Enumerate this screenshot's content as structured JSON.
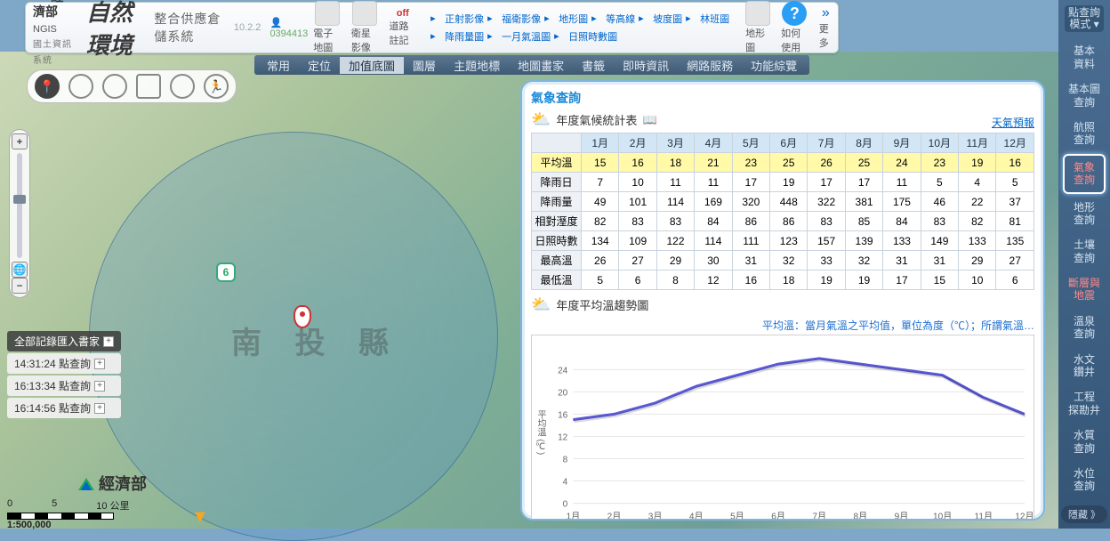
{
  "header": {
    "ministry": "經濟部",
    "ngis": "NGIS",
    "ngis_sub": "國土資訊系統",
    "title": "自然環境",
    "title_tail": "整合供應倉儲系統",
    "version": "10.2.2",
    "visitor": "0394413",
    "btn_cols": {
      "emap": "電子地圖",
      "sat": "衛星影像",
      "off": "off",
      "off_label": "道路註記",
      "terrain": "地形圖",
      "howto": "如何使用",
      "more": "更多"
    },
    "tool_links": [
      "正射影像",
      "福衛影像",
      "地形圖",
      "等高線",
      "坡度圖",
      "林班圖",
      "降雨量圖",
      "一月氣溫圖",
      "日照時數圖"
    ]
  },
  "menubar": {
    "items": [
      "常用",
      "定位",
      "加值底圖",
      "圖層",
      "主題地標",
      "地圖畫家",
      "書籤",
      "即時資訊",
      "網路服務",
      "功能綜覽"
    ],
    "active_index": 2
  },
  "shape_tools": [
    "pin",
    "circle",
    "circle",
    "square",
    "circle",
    "run"
  ],
  "records": {
    "header": "全部記錄匯入書家",
    "rows": [
      "14:31:24 點查詢",
      "16:13:34 點查詢",
      "16:14:56 點查詢"
    ]
  },
  "map": {
    "region_label": "南 投 縣",
    "route_no": "6",
    "scale_text": "1:500,000",
    "scale_units_left": "0",
    "scale_units_mid": "5",
    "scale_units_right": "10 公里",
    "bl_logo": "經濟部"
  },
  "right_sidebar": {
    "mode": "點查詢\n模式",
    "items": [
      {
        "label": "基本\n資料",
        "red": false
      },
      {
        "label": "基本圖\n查詢",
        "red": false
      },
      {
        "label": "航照\n查詢",
        "red": false
      },
      {
        "label": "氣象\n查詢",
        "red": true,
        "active": true
      },
      {
        "label": "地形\n查詢",
        "red": false
      },
      {
        "label": "土壤\n查詢",
        "red": false
      },
      {
        "label": "斷層與\n地震",
        "red": true
      },
      {
        "label": "溫泉\n查詢",
        "red": false
      },
      {
        "label": "水文\n鑽井",
        "red": false
      },
      {
        "label": "工程\n探勘井",
        "red": false
      },
      {
        "label": "水質\n查詢",
        "red": false
      },
      {
        "label": "水位\n查詢",
        "red": false
      }
    ],
    "hide": "隱藏 》"
  },
  "panel": {
    "title": "氣象查詢",
    "table_title": "年度氣候統計表",
    "forecast_link": "天氣預報",
    "months": [
      "1月",
      "2月",
      "3月",
      "4月",
      "5月",
      "6月",
      "7月",
      "8月",
      "9月",
      "10月",
      "11月",
      "12月"
    ],
    "rows": [
      {
        "name": "平均溫",
        "hl": true,
        "vals": [
          15,
          16,
          18,
          21,
          23,
          25,
          26,
          25,
          24,
          23,
          19,
          16
        ]
      },
      {
        "name": "降雨日",
        "vals": [
          7,
          10,
          11,
          11,
          17,
          19,
          17,
          17,
          11,
          5,
          4,
          5
        ]
      },
      {
        "name": "降雨量",
        "vals": [
          49,
          101,
          114,
          169,
          320,
          448,
          322,
          381,
          175,
          46,
          22,
          37
        ]
      },
      {
        "name": "相對溼度",
        "vals": [
          82,
          83,
          83,
          84,
          86,
          86,
          83,
          85,
          84,
          83,
          82,
          81
        ]
      },
      {
        "name": "日照時數",
        "vals": [
          134,
          109,
          122,
          114,
          111,
          123,
          157,
          139,
          133,
          149,
          133,
          135
        ]
      },
      {
        "name": "最高溫",
        "vals": [
          26,
          27,
          29,
          30,
          31,
          32,
          33,
          32,
          31,
          31,
          29,
          27
        ]
      },
      {
        "name": "最低溫",
        "vals": [
          5,
          6,
          8,
          12,
          16,
          18,
          19,
          19,
          17,
          15,
          10,
          6
        ]
      }
    ],
    "chart": {
      "title": "年度平均溫趨勢圖",
      "note": "平均溫：當月氣溫之平均值，單位為度（℃）；所謂氣溫…",
      "y_label": "平均溫 (℃)",
      "y_ticks": [
        0,
        4,
        8,
        12,
        16,
        20,
        24
      ],
      "x_labels": [
        "1月",
        "2月",
        "3月",
        "4月",
        "5月",
        "6月",
        "7月",
        "8月",
        "9月",
        "10月",
        "11月",
        "12月"
      ],
      "series_color": "#5a5ad8",
      "grid_color": "#e6e6e6",
      "line_width": 3,
      "ylim": [
        0,
        28
      ],
      "values": [
        15,
        16,
        18,
        21,
        23,
        25,
        26,
        25,
        24,
        23,
        19,
        16
      ]
    }
  }
}
